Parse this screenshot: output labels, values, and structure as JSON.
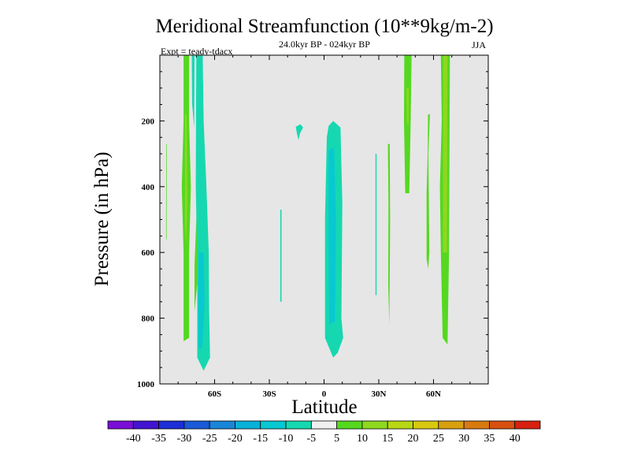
{
  "chart_data": {
    "type": "contour",
    "title": "Meridional Streamfunction (10**9kg/m-2)",
    "subtitle": "24.0kyr BP - 024kyr BP",
    "left_string": "Expt = teady-tdacx",
    "season": "JJA",
    "xlabel": "Latitude",
    "ylabel": "Pressure (in hPa)",
    "xlim": [
      -90,
      90
    ],
    "ylim": [
      1000,
      0
    ],
    "x_ticks": [
      {
        "value": -60,
        "label": "60S"
      },
      {
        "value": -30,
        "label": "30S"
      },
      {
        "value": 0,
        "label": "0"
      },
      {
        "value": 30,
        "label": "30N"
      },
      {
        "value": 60,
        "label": "60N"
      }
    ],
    "y_ticks": [
      {
        "value": 200,
        "label": "200"
      },
      {
        "value": 400,
        "label": "400"
      },
      {
        "value": 600,
        "label": "600"
      },
      {
        "value": 800,
        "label": "800"
      },
      {
        "value": 1000,
        "label": "1000"
      }
    ],
    "missing_color": "#e6e6e6",
    "colorbar": {
      "labels": [
        "-40",
        "-35",
        "-30",
        "-25",
        "-20",
        "-15",
        "-10",
        "-5",
        "5",
        "10",
        "15",
        "20",
        "25",
        "30",
        "35",
        "40"
      ],
      "colors": [
        "#7a0fd8",
        "#4314d0",
        "#1c2fd6",
        "#1a5ad8",
        "#1a86d8",
        "#0ab0d8",
        "#08c8d2",
        "#16d8b0",
        "#f0f0f0",
        "#55d820",
        "#8ed820",
        "#b8d815",
        "#d8c810",
        "#d8a010",
        "#d87a10",
        "#d85010",
        "#d82010"
      ]
    },
    "regions": [
      {
        "fill": "#55d820",
        "points": [
          [
            -77,
            0
          ],
          [
            -74,
            0
          ],
          [
            -74,
            200
          ],
          [
            -73,
            400
          ],
          [
            -74,
            600
          ],
          [
            -74,
            860
          ],
          [
            -77,
            870
          ],
          [
            -77,
            600
          ],
          [
            -78,
            400
          ],
          [
            -77,
            200
          ]
        ]
      },
      {
        "fill": "#8ed820",
        "points": [
          [
            -76.2,
            180
          ],
          [
            -75.3,
            180
          ],
          [
            -75.0,
            450
          ],
          [
            -75.5,
            580
          ],
          [
            -76.2,
            500
          ]
        ]
      },
      {
        "fill": "#55d820",
        "points": [
          [
            -69.3,
            310
          ],
          [
            -68.5,
            310
          ],
          [
            -68.5,
            640
          ],
          [
            -71.0,
            780
          ],
          [
            -71.0,
            640
          ],
          [
            -70,
            500
          ]
        ]
      },
      {
        "fill": "#55d820",
        "points": [
          [
            -86.5,
            270
          ],
          [
            -86.2,
            270
          ],
          [
            -86.3,
            560
          ],
          [
            -86.6,
            560
          ]
        ]
      },
      {
        "fill": "#16d8b0",
        "points": [
          [
            -72.5,
            0
          ],
          [
            -71.0,
            0
          ],
          [
            -71.2,
            220
          ],
          [
            -72.3,
            150
          ]
        ]
      },
      {
        "fill": "#16d8b0",
        "points": [
          [
            -70.0,
            0
          ],
          [
            -66.5,
            0
          ],
          [
            -66.0,
            200
          ],
          [
            -64.5,
            400
          ],
          [
            -63.2,
            600
          ],
          [
            -63.0,
            780
          ],
          [
            -62.5,
            920
          ],
          [
            -66,
            960
          ],
          [
            -69.5,
            920
          ],
          [
            -69.5,
            630
          ],
          [
            -70.3,
            400
          ],
          [
            -70.2,
            200
          ]
        ]
      },
      {
        "fill": "#08c8d2",
        "points": [
          [
            -68.5,
            600
          ],
          [
            -66.0,
            600
          ],
          [
            -65.5,
            750
          ],
          [
            -66.8,
            890
          ],
          [
            -68.7,
            890
          ],
          [
            -68.9,
            700
          ]
        ]
      },
      {
        "fill": "#16d8b0",
        "points": [
          [
            -15.5,
            218
          ],
          [
            -13.0,
            210
          ],
          [
            -11.5,
            220
          ],
          [
            -13.2,
            238
          ],
          [
            -14.0,
            258
          ],
          [
            -14.8,
            240
          ]
        ]
      },
      {
        "fill": "#16d8b0",
        "points": [
          [
            -24.0,
            470
          ],
          [
            -23.3,
            470
          ],
          [
            -23.3,
            750
          ],
          [
            -24.0,
            750
          ]
        ]
      },
      {
        "fill": "#16d8b0",
        "points": [
          [
            2.5,
            215
          ],
          [
            5,
            200
          ],
          [
            9,
            220
          ],
          [
            10,
            450
          ],
          [
            9.5,
            800
          ],
          [
            10.5,
            860
          ],
          [
            7.5,
            905
          ],
          [
            5,
            920
          ],
          [
            0.5,
            860
          ],
          [
            0.5,
            500
          ],
          [
            1.5,
            250
          ]
        ]
      },
      {
        "fill": "#08c8d2",
        "points": [
          [
            2.5,
            290
          ],
          [
            5.5,
            280
          ],
          [
            6.5,
            500
          ],
          [
            6.0,
            810
          ],
          [
            2.8,
            820
          ],
          [
            2.5,
            550
          ]
        ]
      },
      {
        "fill": "#16d8b0",
        "points": [
          [
            28.2,
            300
          ],
          [
            28.8,
            300
          ],
          [
            28.8,
            730
          ],
          [
            28.2,
            730
          ]
        ]
      },
      {
        "fill": "#55d820",
        "points": [
          [
            35,
            270
          ],
          [
            36,
            270
          ],
          [
            36.2,
            510
          ],
          [
            35.8,
            820
          ],
          [
            35.2,
            700
          ],
          [
            35.3,
            450
          ]
        ]
      },
      {
        "fill": "#55d820",
        "points": [
          [
            44,
            0
          ],
          [
            48,
            0
          ],
          [
            47.5,
            200
          ],
          [
            46.7,
            420
          ],
          [
            44.5,
            420
          ],
          [
            43.8,
            200
          ]
        ]
      },
      {
        "fill": "#8ed820",
        "points": [
          [
            45.2,
            100
          ],
          [
            46.5,
            100
          ],
          [
            46.3,
            210
          ],
          [
            45.4,
            210
          ]
        ]
      },
      {
        "fill": "#55d820",
        "points": [
          [
            57,
            180
          ],
          [
            58,
            180
          ],
          [
            57.2,
            300
          ],
          [
            57.7,
            600
          ],
          [
            57.1,
            650
          ],
          [
            56.2,
            620
          ],
          [
            56.2,
            420
          ],
          [
            56.8,
            300
          ]
        ]
      },
      {
        "fill": "#55d820",
        "points": [
          [
            64,
            0
          ],
          [
            69,
            0
          ],
          [
            68.5,
            600
          ],
          [
            67.7,
            880
          ],
          [
            65,
            860
          ],
          [
            64,
            600
          ],
          [
            63.5,
            400
          ],
          [
            64.5,
            200
          ]
        ]
      },
      {
        "fill": "#8ed820",
        "points": [
          [
            65.3,
            0
          ],
          [
            67.6,
            0
          ],
          [
            67.4,
            600
          ],
          [
            65.2,
            600
          ]
        ]
      }
    ]
  }
}
